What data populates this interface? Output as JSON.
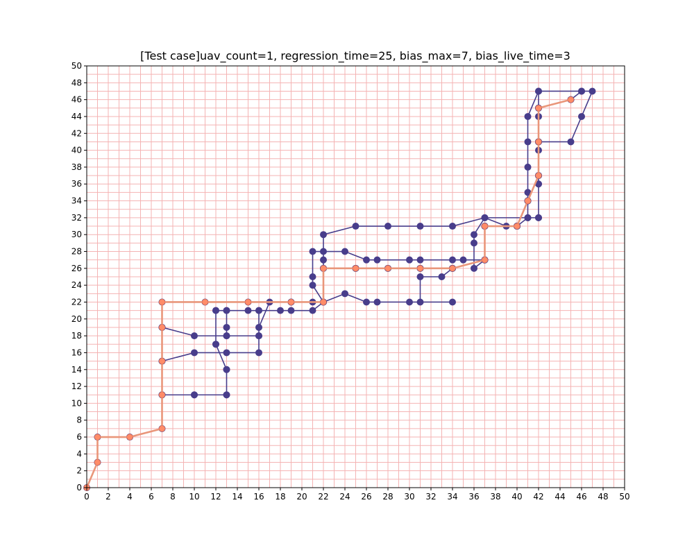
{
  "chart_data": {
    "type": "line",
    "title": "[Test case]uav_count=1, regression_time=25, bias_max=7, bias_live_time=3",
    "xlabel": "",
    "ylabel": "",
    "xlim": [
      0,
      50
    ],
    "ylim": [
      0,
      50
    ],
    "xticks": [
      0,
      2,
      4,
      6,
      8,
      10,
      12,
      14,
      16,
      18,
      20,
      22,
      24,
      26,
      28,
      30,
      32,
      34,
      36,
      38,
      40,
      42,
      44,
      46,
      48,
      50
    ],
    "yticks": [
      0,
      2,
      4,
      6,
      8,
      10,
      12,
      14,
      16,
      18,
      20,
      22,
      24,
      26,
      28,
      30,
      32,
      34,
      36,
      38,
      40,
      42,
      44,
      46,
      48,
      50
    ],
    "grid": true,
    "grid_step": 1,
    "colors": {
      "grid": "#f4b3b3",
      "series_1": "#483d8b",
      "series_2": "#e9967a",
      "series_2_marker": "#ff8c69"
    },
    "series": [
      {
        "points": [
          [
            0,
            0
          ],
          [
            1,
            3
          ],
          [
            1,
            6
          ],
          [
            4,
            6
          ],
          [
            7,
            7
          ],
          [
            7,
            11
          ],
          [
            10,
            11
          ],
          [
            13,
            11
          ],
          [
            13,
            14
          ],
          [
            12,
            17
          ],
          [
            12,
            21
          ],
          [
            13,
            21
          ],
          [
            15,
            21
          ],
          [
            16,
            21
          ],
          [
            16,
            19
          ],
          [
            17,
            22
          ],
          [
            19,
            22
          ],
          [
            21,
            22
          ],
          [
            22,
            22
          ],
          [
            21,
            24
          ],
          [
            21,
            25
          ],
          [
            21,
            28
          ],
          [
            22,
            28
          ],
          [
            24,
            28
          ],
          [
            26,
            27
          ],
          [
            27,
            27
          ],
          [
            30,
            27
          ],
          [
            31,
            27
          ],
          [
            34,
            27
          ],
          [
            35,
            27
          ],
          [
            37,
            27
          ],
          [
            36,
            26
          ],
          [
            36,
            29
          ],
          [
            36,
            30
          ],
          [
            37,
            32
          ],
          [
            39,
            31
          ],
          [
            40,
            31
          ],
          [
            41,
            32
          ],
          [
            41,
            35
          ],
          [
            41,
            38
          ],
          [
            41,
            41
          ],
          [
            41,
            44
          ],
          [
            42,
            47
          ],
          [
            46,
            47
          ],
          [
            45,
            46
          ],
          [
            42,
            45
          ],
          [
            42,
            44
          ],
          [
            42,
            41
          ],
          [
            42,
            40
          ],
          [
            42,
            37
          ],
          [
            42,
            36
          ],
          [
            42,
            32
          ],
          [
            41,
            32
          ],
          [
            41,
            34
          ],
          [
            40,
            31
          ],
          [
            37,
            31
          ],
          [
            37,
            27
          ],
          [
            34,
            26
          ],
          [
            33,
            25
          ],
          [
            31,
            25
          ],
          [
            31,
            22
          ],
          [
            34,
            22
          ],
          [
            30,
            22
          ],
          [
            27,
            22
          ],
          [
            26,
            22
          ],
          [
            24,
            23
          ],
          [
            22,
            22
          ],
          [
            22,
            27
          ],
          [
            22,
            30
          ],
          [
            25,
            31
          ],
          [
            28,
            31
          ],
          [
            31,
            31
          ],
          [
            34,
            31
          ],
          [
            37,
            32
          ],
          [
            42,
            32
          ],
          [
            42,
            36
          ],
          [
            42,
            41
          ],
          [
            45,
            41
          ],
          [
            46,
            44
          ],
          [
            47,
            47
          ],
          [
            46,
            47
          ],
          [
            42,
            47
          ],
          [
            42,
            45
          ],
          [
            42,
            41
          ],
          [
            42,
            37
          ],
          [
            41,
            34
          ],
          [
            40,
            31
          ],
          [
            37,
            31
          ],
          [
            37,
            27
          ],
          [
            34,
            26
          ],
          [
            31,
            26
          ],
          [
            28,
            26
          ],
          [
            25,
            26
          ],
          [
            22,
            26
          ],
          [
            22,
            22
          ],
          [
            21,
            21
          ],
          [
            19,
            21
          ],
          [
            18,
            21
          ],
          [
            16,
            21
          ],
          [
            16,
            18
          ],
          [
            16,
            16
          ],
          [
            13,
            16
          ],
          [
            10,
            16
          ],
          [
            7,
            15
          ],
          [
            7,
            19
          ],
          [
            10,
            18
          ],
          [
            13,
            18
          ],
          [
            16,
            18
          ],
          [
            13,
            18
          ],
          [
            13,
            19
          ],
          [
            13,
            21
          ],
          [
            12,
            21
          ],
          [
            12,
            17
          ],
          [
            13,
            14
          ],
          [
            13,
            11
          ],
          [
            10,
            11
          ],
          [
            7,
            11
          ],
          [
            7,
            15
          ],
          [
            7,
            19
          ],
          [
            7,
            22
          ],
          [
            11,
            22
          ],
          [
            15,
            22
          ],
          [
            19,
            22
          ],
          [
            22,
            22
          ],
          [
            22,
            26
          ],
          [
            25,
            26
          ],
          [
            28,
            26
          ],
          [
            31,
            26
          ],
          [
            34,
            26
          ],
          [
            37,
            27
          ],
          [
            37,
            31
          ],
          [
            40,
            31
          ],
          [
            41,
            34
          ],
          [
            42,
            37
          ],
          [
            42,
            41
          ],
          [
            42,
            45
          ],
          [
            45,
            46
          ]
        ]
      },
      {
        "points": [
          [
            0,
            0
          ],
          [
            1,
            3
          ],
          [
            1,
            6
          ],
          [
            4,
            6
          ],
          [
            7,
            7
          ],
          [
            7,
            11
          ],
          [
            7,
            15
          ],
          [
            7,
            19
          ],
          [
            7,
            22
          ],
          [
            11,
            22
          ],
          [
            15,
            22
          ],
          [
            19,
            22
          ],
          [
            22,
            22
          ],
          [
            22,
            26
          ],
          [
            25,
            26
          ],
          [
            28,
            26
          ],
          [
            31,
            26
          ],
          [
            34,
            26
          ],
          [
            37,
            27
          ],
          [
            37,
            31
          ],
          [
            40,
            31
          ],
          [
            41,
            34
          ],
          [
            42,
            37
          ],
          [
            42,
            41
          ],
          [
            42,
            45
          ],
          [
            45,
            46
          ]
        ]
      }
    ]
  }
}
